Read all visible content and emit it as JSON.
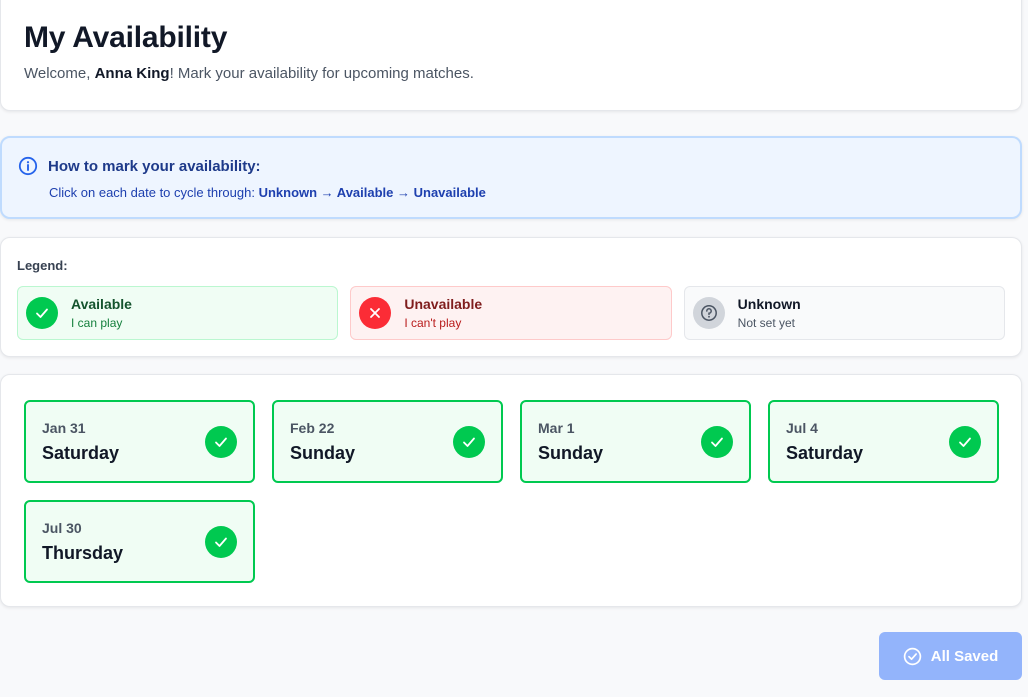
{
  "header": {
    "title": "My Availability",
    "welcome_prefix": "Welcome, ",
    "user_name": "Anna King",
    "welcome_suffix": "! Mark your availability for upcoming matches."
  },
  "info": {
    "icon": "info-icon",
    "title": "How to mark your availability:",
    "body_prefix": "Click on each date to cycle through: ",
    "cycle": "Unknown → Available → Unavailable"
  },
  "legend": {
    "label": "Legend:",
    "items": [
      {
        "title": "Available",
        "subtitle": "I can play",
        "icon": "check-icon",
        "color": "#00c950"
      },
      {
        "title": "Unavailable",
        "subtitle": "I can't play",
        "icon": "x-icon",
        "color": "#fb2c36"
      },
      {
        "title": "Unknown",
        "subtitle": "Not set yet",
        "icon": "question-icon",
        "color": "#d1d5db"
      }
    ]
  },
  "dates": [
    {
      "date": "Jan 31",
      "weekday": "Saturday",
      "status": "Available"
    },
    {
      "date": "Feb 22",
      "weekday": "Sunday",
      "status": "Available"
    },
    {
      "date": "Mar 1",
      "weekday": "Sunday",
      "status": "Available"
    },
    {
      "date": "Jul 4",
      "weekday": "Saturday",
      "status": "Available"
    },
    {
      "date": "Jul 30",
      "weekday": "Thursday",
      "status": "Available"
    }
  ],
  "save_button": {
    "label": "All Saved",
    "icon": "check-circle-icon",
    "color": "#93b4fb"
  }
}
